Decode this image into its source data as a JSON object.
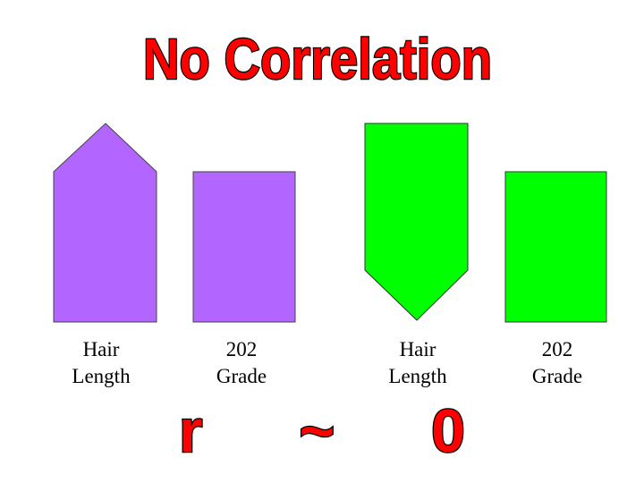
{
  "title": "No Correlation",
  "shapes": [
    {
      "label_lines": [
        "Hair",
        "Length"
      ]
    },
    {
      "label_lines": [
        "202",
        "Grade"
      ]
    },
    {
      "label_lines": [
        "Hair",
        "Length"
      ]
    },
    {
      "label_lines": [
        "202",
        "Grade"
      ]
    }
  ],
  "footer": "r ~ 0"
}
